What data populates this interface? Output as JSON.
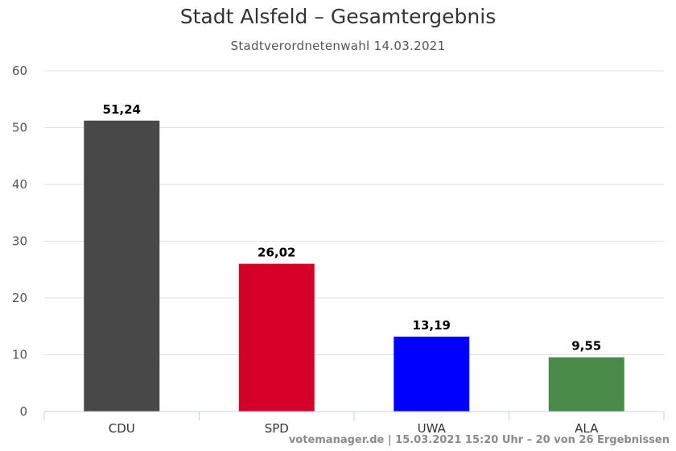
{
  "chart_data": {
    "type": "bar",
    "title": "Stadt Alsfeld – Gesamtergebnis",
    "subtitle": "Stadtverordnetenwahl 14.03.2021",
    "categories": [
      "CDU",
      "SPD",
      "UWA",
      "ALA"
    ],
    "values": [
      51.24,
      26.02,
      13.19,
      9.55
    ],
    "value_labels": [
      "51,24",
      "26,02",
      "13,19",
      "9,55"
    ],
    "colors": [
      "#484848",
      "#d5002a",
      "#0000ff",
      "#4a8a48"
    ],
    "ylim": [
      0,
      60
    ],
    "yticks": [
      "0",
      "10",
      "20",
      "30",
      "40",
      "50",
      "60"
    ],
    "xlabel": "",
    "ylabel": "",
    "grid": true,
    "legend": "none",
    "credit": "votemanager.de | 15.03.2021 15:20 Uhr – 20 von 26 Ergebnissen"
  }
}
